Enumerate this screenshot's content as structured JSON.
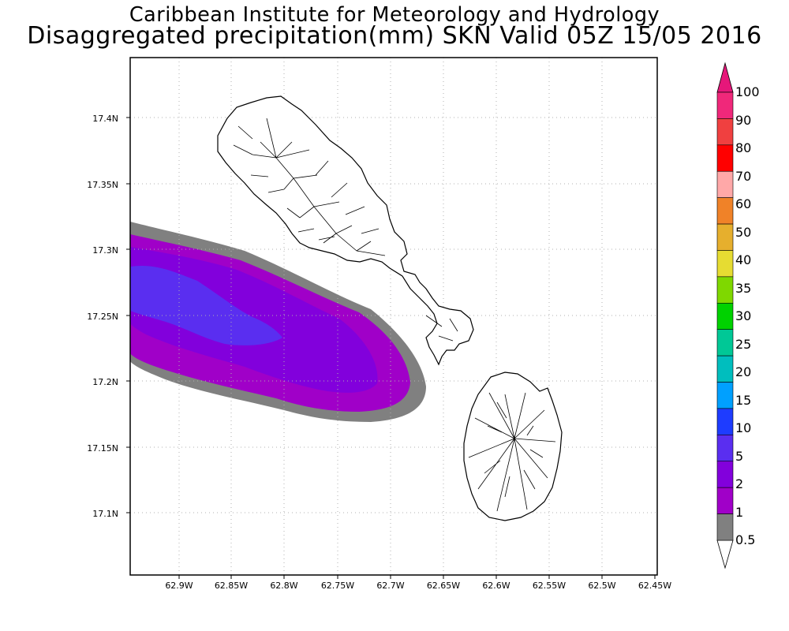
{
  "title_line_1": "Caribbean Institute for Meteorology and Hydrology",
  "title_line_2": "Disaggregated precipitation(mm) SKN Valid 05Z 15/05 2016",
  "axes": {
    "lat_ticks": [
      "17.4N",
      "17.35N",
      "17.3N",
      "17.25N",
      "17.2N",
      "17.15N",
      "17.1N"
    ],
    "lon_ticks": [
      "62.9W",
      "62.85W",
      "62.8W",
      "62.75W",
      "62.7W",
      "62.65W",
      "62.6W",
      "62.55W",
      "62.5W",
      "62.45W"
    ],
    "lat_range": [
      17.05,
      17.45
    ],
    "lon_range": [
      62.95,
      62.45
    ],
    "grid": "dotted"
  },
  "colorbar": {
    "labels": [
      "100",
      "90",
      "80",
      "70",
      "60",
      "50",
      "40",
      "35",
      "30",
      "25",
      "20",
      "15",
      "10",
      "5",
      "2",
      "1",
      "0.5"
    ],
    "colors": [
      "#f0287a",
      "#f04040",
      "#ff0000",
      "#ffa8a8",
      "#f08228",
      "#e6af2d",
      "#e6dc32",
      "#7fd800",
      "#00d200",
      "#00c896",
      "#00bebe",
      "#00a0ff",
      "#1e3cff",
      "#5a2ef0",
      "#8200dc",
      "#a000c8",
      "#808080"
    ],
    "top_arrow_color": "#e6177a",
    "bottom_arrow_color": "#ffffff"
  },
  "precip_levels": [
    {
      "min_mm": 0.5,
      "color": "#808080"
    },
    {
      "min_mm": 1,
      "color": "#a000c8"
    },
    {
      "min_mm": 2,
      "color": "#8200dc"
    },
    {
      "min_mm": 5,
      "color": "#5a2ef0"
    }
  ],
  "islands": [
    "Saint Kitts",
    "Nevis"
  ]
}
